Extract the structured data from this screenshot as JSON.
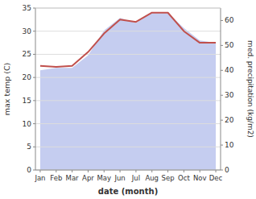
{
  "chart_data": {
    "type": "line",
    "categories": [
      "Jan",
      "Feb",
      "Mar",
      "Apr",
      "May",
      "Jun",
      "Jul",
      "Aug",
      "Sep",
      "Oct",
      "Nov",
      "Dec"
    ],
    "series": [
      {
        "type": "line",
        "color": "#c0504d",
        "values": [
          22.5,
          22.3,
          22.5,
          25.5,
          29.5,
          32.5,
          32.0,
          34.0,
          34.0,
          30.0,
          27.5,
          27.5
        ]
      },
      {
        "type": "area",
        "color": "#c5cdf0",
        "axis": "y2",
        "values": [
          40.0,
          41.0,
          41.0,
          46.0,
          56.0,
          61.0,
          59.0,
          63.0,
          63.0,
          57.0,
          52.0,
          51.0
        ]
      }
    ],
    "x_label": "date (month)",
    "y_label": "max temp (C)",
    "y2_label": "med. precipitation (kg/m2)",
    "ylim": [
      0,
      35
    ],
    "yticks": [
      0,
      5,
      10,
      15,
      20,
      25,
      30,
      35
    ],
    "y2lim": [
      0,
      65
    ],
    "y2ticks": [
      0,
      10,
      20,
      30,
      40,
      50,
      60
    ],
    "grid": true
  }
}
